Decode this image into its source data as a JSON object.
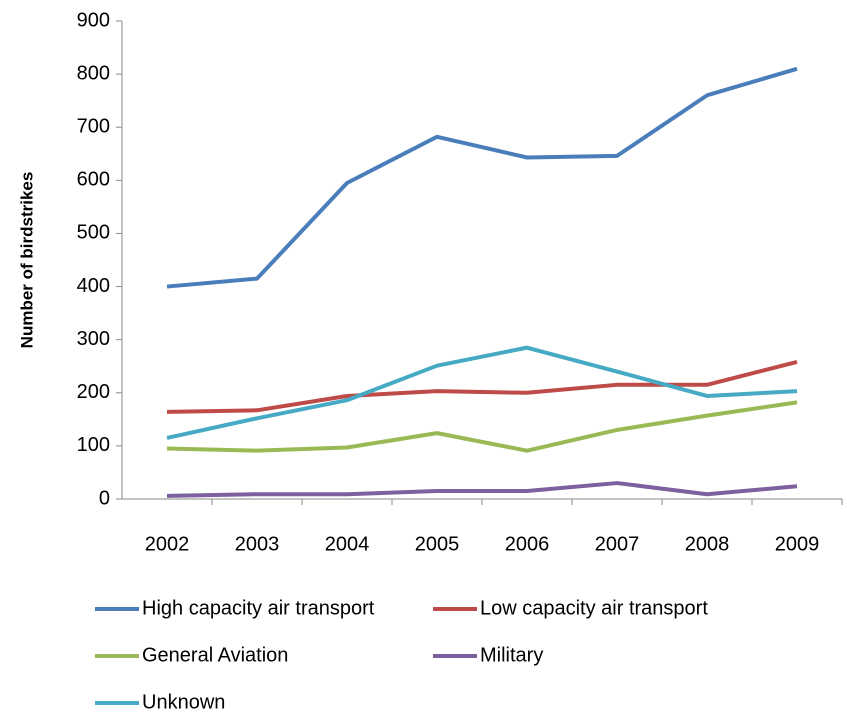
{
  "chart_data": {
    "type": "line",
    "y_label": "Number of birdstrikes",
    "categories": [
      "2002",
      "2003",
      "2004",
      "2005",
      "2006",
      "2007",
      "2008",
      "2009"
    ],
    "series": [
      {
        "name": "High capacity air transport",
        "color": "#4a7ebb",
        "values": [
          400,
          415,
          595,
          682,
          643,
          646,
          760,
          810
        ]
      },
      {
        "name": "Low capacity air transport",
        "color": "#be4b48",
        "values": [
          164,
          167,
          194,
          203,
          200,
          215,
          215,
          258
        ]
      },
      {
        "name": "General Aviation",
        "color": "#98b954",
        "values": [
          95,
          91,
          97,
          124,
          91,
          130,
          157,
          182
        ]
      },
      {
        "name": "Military",
        "color": "#7d60a0",
        "values": [
          6,
          9,
          9,
          15,
          15,
          30,
          9,
          24
        ]
      },
      {
        "name": "Unknown",
        "color": "#46aac5",
        "values": [
          115,
          152,
          186,
          251,
          285,
          240,
          194,
          203
        ]
      }
    ],
    "ylim": [
      0,
      900
    ],
    "yticks": [
      0,
      100,
      200,
      300,
      400,
      500,
      600,
      700,
      800,
      900
    ],
    "grid": false,
    "legend": "bottom"
  }
}
